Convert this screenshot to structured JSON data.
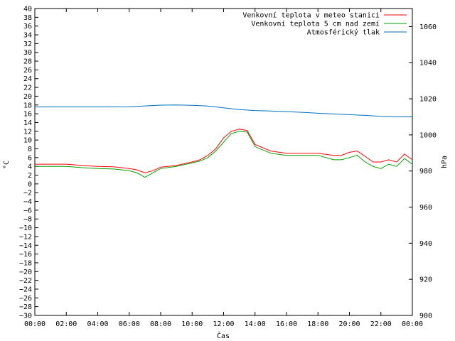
{
  "chart_data": {
    "type": "line",
    "xlabel": "Čas",
    "ylabel_left": "°C",
    "ylabel_right": "hPa",
    "x_ticks": [
      "00:00",
      "02:00",
      "04:00",
      "06:00",
      "08:00",
      "10:00",
      "12:00",
      "14:00",
      "16:00",
      "18:00",
      "20:00",
      "22:00",
      "00:00"
    ],
    "ylim_left": [
      -30,
      40
    ],
    "ylim_right": [
      900,
      1070
    ],
    "y_ticks_left": [
      40,
      38,
      36,
      34,
      32,
      30,
      28,
      26,
      24,
      22,
      20,
      18,
      16,
      14,
      12,
      10,
      8,
      6,
      4,
      2,
      0,
      -2,
      -4,
      -6,
      -8,
      -10,
      -12,
      -14,
      -16,
      -18,
      -20,
      -22,
      -24,
      -26,
      -28,
      -30
    ],
    "y_ticks_right": [
      1060,
      1040,
      1020,
      1000,
      980,
      960,
      940,
      920,
      900
    ],
    "legend_position": "top-right",
    "series": [
      {
        "name": "Venkovní teplota v meteo stanici",
        "color": "#ff0000",
        "axis": "left",
        "x": [
          0,
          1,
          2,
          3,
          4,
          5,
          6,
          6.5,
          7,
          7.5,
          8,
          9,
          10,
          10.5,
          11,
          11.5,
          12,
          12.5,
          13,
          13.5,
          14,
          15,
          16,
          17,
          18,
          19,
          19.5,
          20,
          20.5,
          21,
          21.5,
          22,
          22.5,
          23,
          23.5,
          24
        ],
        "y": [
          4.5,
          4.5,
          4.5,
          4.2,
          4,
          3.9,
          3.5,
          3.2,
          2.5,
          3,
          3.8,
          4.2,
          5,
          5.5,
          6.5,
          8,
          10.5,
          12,
          12.5,
          12.2,
          9,
          7.5,
          7,
          7,
          7,
          6.5,
          6.5,
          7.2,
          7.5,
          6.3,
          5,
          5,
          5.5,
          5,
          6.8,
          5.5
        ]
      },
      {
        "name": "Venkovní teplota 5 cm nad zemí",
        "color": "#00a000",
        "axis": "left",
        "x": [
          0,
          1,
          2,
          3,
          4,
          5,
          6,
          6.5,
          7,
          7.5,
          8,
          9,
          10,
          10.5,
          11,
          11.5,
          12,
          12.5,
          13,
          13.5,
          14,
          15,
          16,
          17,
          18,
          19,
          19.5,
          20,
          20.5,
          21,
          21.5,
          22,
          22.5,
          23,
          23.5,
          24
        ],
        "y": [
          4,
          4,
          4,
          3.7,
          3.5,
          3.4,
          3,
          2.5,
          1.5,
          2.5,
          3.5,
          4,
          4.8,
          5.2,
          6,
          7.5,
          9.5,
          11.5,
          12,
          11.8,
          8.5,
          7,
          6.5,
          6.5,
          6.5,
          5.5,
          5.5,
          6,
          6.5,
          5,
          4,
          3.5,
          4.5,
          4,
          5.8,
          4.5
        ]
      },
      {
        "name": "Atmosférický tlak",
        "color": "#0070c0",
        "axis": "right",
        "x": [
          0,
          2,
          4,
          6,
          8,
          9,
          10,
          11,
          12,
          13,
          14,
          15,
          16,
          17,
          18,
          19,
          20,
          21,
          22,
          23,
          24
        ],
        "y": [
          1015.5,
          1015.5,
          1015.5,
          1015.6,
          1016.5,
          1016.6,
          1016.4,
          1016,
          1015,
          1014,
          1013.5,
          1013.2,
          1012.9,
          1012.5,
          1012,
          1011.6,
          1011.2,
          1010.8,
          1010.3,
          1010,
          1010
        ]
      }
    ]
  }
}
